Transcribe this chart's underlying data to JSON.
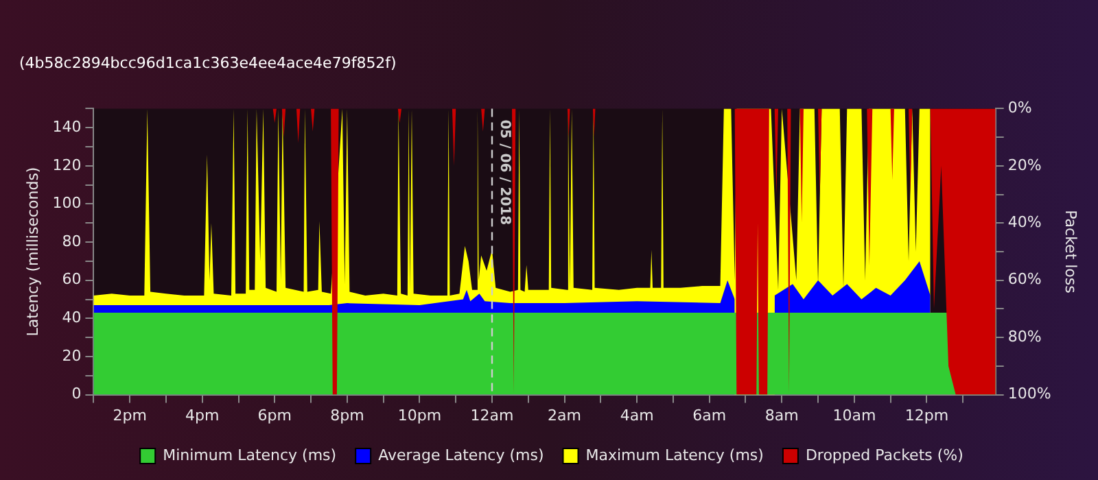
{
  "chart_data": {
    "type": "area",
    "subtitle": "(4b58c2894bcc96d1ca1c363e4ee4ace4e79f852f)",
    "ylabel": "Latency (milliseconds)",
    "y2label": "Packet loss",
    "xlim": [
      "2018-06-04T13:00",
      "2018-06-05T13:54"
    ],
    "xticks": [
      {
        "value": "2018-06-04T13:00",
        "label": null
      },
      {
        "value": "2018-06-04T14:00",
        "label": "2pm"
      },
      {
        "value": "2018-06-04T15:00",
        "label": null
      },
      {
        "value": "2018-06-04T16:00",
        "label": "4pm"
      },
      {
        "value": "2018-06-04T17:00",
        "label": null
      },
      {
        "value": "2018-06-04T18:00",
        "label": "6pm"
      },
      {
        "value": "2018-06-04T19:00",
        "label": null
      },
      {
        "value": "2018-06-04T20:00",
        "label": "8pm"
      },
      {
        "value": "2018-06-04T21:00",
        "label": null
      },
      {
        "value": "2018-06-04T22:00",
        "label": "10pm"
      },
      {
        "value": "2018-06-04T23:00",
        "label": null
      },
      {
        "value": "2018-06-05T00:00",
        "label": "12am"
      },
      {
        "value": "2018-06-05T01:00",
        "label": null
      },
      {
        "value": "2018-06-05T02:00",
        "label": "2am"
      },
      {
        "value": "2018-06-05T03:00",
        "label": null
      },
      {
        "value": "2018-06-05T04:00",
        "label": "4am"
      },
      {
        "value": "2018-06-05T05:00",
        "label": null
      },
      {
        "value": "2018-06-05T06:00",
        "label": "6am"
      },
      {
        "value": "2018-06-05T07:00",
        "label": null
      },
      {
        "value": "2018-06-05T08:00",
        "label": "8am"
      },
      {
        "value": "2018-06-05T09:00",
        "label": null
      },
      {
        "value": "2018-06-05T10:00",
        "label": "10am"
      },
      {
        "value": "2018-06-05T11:00",
        "label": null
      },
      {
        "value": "2018-06-05T12:00",
        "label": "12pm"
      },
      {
        "value": "2018-06-05T13:00",
        "label": null
      }
    ],
    "ylim": [
      0,
      150
    ],
    "yticks": [
      0,
      {
        "value": 10,
        "label": null
      },
      20,
      {
        "value": 30,
        "label": null
      },
      40,
      {
        "value": 50,
        "label": null
      },
      60,
      {
        "value": 70,
        "label": null
      },
      80,
      {
        "value": 90,
        "label": null
      },
      100,
      {
        "value": 110,
        "label": null
      },
      120,
      {
        "value": 130,
        "label": null
      },
      140,
      {
        "value": 150,
        "label": null
      }
    ],
    "y2lim": [
      100,
      0
    ],
    "y2ticks": [
      {
        "value": 0,
        "label": "0%"
      },
      {
        "value": 10,
        "label": null
      },
      {
        "value": 20,
        "label": "20%"
      },
      {
        "value": 30,
        "label": null
      },
      {
        "value": 40,
        "label": "40%"
      },
      {
        "value": 50,
        "label": null
      },
      {
        "value": 60,
        "label": "60%"
      },
      {
        "value": 70,
        "label": null
      },
      {
        "value": 80,
        "label": "80%"
      },
      {
        "value": 90,
        "label": null
      },
      {
        "value": 100,
        "label": "100%"
      }
    ],
    "grid": false,
    "legend": "bottom",
    "ref_lines": [
      {
        "axis": "x",
        "value": "2018-06-05T00:00",
        "label": "05 / 06 / 2018",
        "line_style": "dashed",
        "color": "#cccccc"
      }
    ],
    "series": [
      {
        "name": "Minimum Latency (ms)",
        "color": "#33cc33",
        "x": [
          "2018-06-04T13:00",
          "2018-06-04T16:00",
          "2018-06-04T20:00",
          "2018-06-05T00:00",
          "2018-06-05T04:00",
          "2018-06-05T06:24",
          "2018-06-05T10:00",
          "2018-06-05T13:54"
        ],
        "values": [
          43,
          43,
          43,
          43,
          43,
          43,
          43,
          43
        ]
      },
      {
        "name": "Average Latency (ms)",
        "color": "#0000ff",
        "x": [
          "2018-06-04T13:00",
          "2018-06-04T16:00",
          "2018-06-04T19:30",
          "2018-06-04T20:00",
          "2018-06-04T22:00",
          "2018-06-04T23:12",
          "2018-06-04T23:18",
          "2018-06-04T23:24",
          "2018-06-04T23:39",
          "2018-06-04T23:48",
          "2018-06-05T00:30",
          "2018-06-05T02:00",
          "2018-06-05T04:00",
          "2018-06-05T06:18",
          "2018-06-05T06:30",
          "2018-06-05T06:42",
          "2018-06-05T07:00",
          "2018-06-05T07:30",
          "2018-06-05T07:48",
          "2018-06-05T08:18",
          "2018-06-05T08:36",
          "2018-06-05T09:00",
          "2018-06-05T09:24",
          "2018-06-05T09:48",
          "2018-06-05T10:12",
          "2018-06-05T10:36",
          "2018-06-05T11:00",
          "2018-06-05T11:24",
          "2018-06-05T11:48",
          "2018-06-05T12:06"
        ],
        "values": [
          47,
          47,
          47,
          48,
          47,
          50,
          55,
          49,
          53,
          49,
          48,
          48,
          49,
          48,
          60,
          50,
          null,
          null,
          52,
          58,
          50,
          60,
          52,
          58,
          50,
          56,
          52,
          60,
          70,
          52
        ]
      },
      {
        "name": "Maximum Latency (ms)",
        "color": "#ffff00",
        "x": [
          "2018-06-04T13:00",
          "2018-06-04T13:30",
          "2018-06-04T14:00",
          "2018-06-04T14:24",
          "2018-06-04T14:29",
          "2018-06-04T14:34",
          "2018-06-04T15:00",
          "2018-06-04T15:30",
          "2018-06-04T16:03",
          "2018-06-04T16:08",
          "2018-06-04T16:12",
          "2018-06-04T16:15",
          "2018-06-04T16:19",
          "2018-06-04T16:48",
          "2018-06-04T16:52",
          "2018-06-04T16:55",
          "2018-06-04T17:12",
          "2018-06-04T17:15",
          "2018-06-04T17:18",
          "2018-06-04T17:27",
          "2018-06-04T17:30",
          "2018-06-04T17:36",
          "2018-06-04T17:41",
          "2018-06-04T17:45",
          "2018-06-04T18:03",
          "2018-06-04T18:06",
          "2018-06-04T18:10",
          "2018-06-04T18:13",
          "2018-06-04T18:18",
          "2018-06-04T18:48",
          "2018-06-04T18:50",
          "2018-06-04T18:54",
          "2018-06-04T19:12",
          "2018-06-04T19:14",
          "2018-06-04T19:18",
          "2018-06-04T19:33",
          "2018-06-04T19:52",
          "2018-06-04T19:56",
          "2018-06-04T20:00",
          "2018-06-04T20:04",
          "2018-06-04T20:30",
          "2018-06-04T21:00",
          "2018-06-04T21:23",
          "2018-06-04T21:25",
          "2018-06-04T21:29",
          "2018-06-04T21:40",
          "2018-06-04T21:42",
          "2018-06-04T21:44",
          "2018-06-04T21:47",
          "2018-06-04T21:50",
          "2018-06-04T22:18",
          "2018-06-04T22:46",
          "2018-06-04T22:48",
          "2018-06-04T22:50",
          "2018-06-04T23:06",
          "2018-06-04T23:15",
          "2018-06-04T23:21",
          "2018-06-04T23:27",
          "2018-06-04T23:34",
          "2018-06-04T23:36",
          "2018-06-04T23:38",
          "2018-06-04T23:42",
          "2018-06-04T23:51",
          "2018-06-05T00:00",
          "2018-06-05T00:06",
          "2018-06-05T00:30",
          "2018-06-05T00:43",
          "2018-06-05T00:45",
          "2018-06-05T00:47",
          "2018-06-05T00:54",
          "2018-06-05T00:57",
          "2018-06-05T01:00",
          "2018-06-05T01:34",
          "2018-06-05T01:36",
          "2018-06-05T01:38",
          "2018-06-05T02:04",
          "2018-06-05T02:06",
          "2018-06-05T02:09",
          "2018-06-05T02:12",
          "2018-06-05T02:15",
          "2018-06-05T02:46",
          "2018-06-05T02:48",
          "2018-06-05T02:50",
          "2018-06-05T03:30",
          "2018-06-05T04:00",
          "2018-06-05T04:22",
          "2018-06-05T04:24",
          "2018-06-05T04:26",
          "2018-06-05T04:40",
          "2018-06-05T04:42",
          "2018-06-05T04:44",
          "2018-06-05T05:12",
          "2018-06-05T05:48",
          "2018-06-05T06:18",
          "2018-06-05T06:24",
          "2018-06-05T06:36",
          "2018-06-05T06:42",
          "2018-06-05T06:45",
          "2018-06-05T07:42",
          "2018-06-05T07:54",
          "2018-06-05T08:00",
          "2018-06-05T08:24",
          "2018-06-05T08:30",
          "2018-06-05T08:54",
          "2018-06-05T09:00",
          "2018-06-05T09:06",
          "2018-06-05T09:36",
          "2018-06-05T09:42",
          "2018-06-05T09:48",
          "2018-06-05T10:12",
          "2018-06-05T10:18",
          "2018-06-05T10:24",
          "2018-06-05T11:24",
          "2018-06-05T11:30",
          "2018-06-05T11:36",
          "2018-06-05T11:42",
          "2018-06-05T11:48",
          "2018-06-05T12:06"
        ],
        "values": [
          52,
          53,
          52,
          52,
          150,
          54,
          53,
          52,
          52,
          126,
          60,
          90,
          53,
          52,
          150,
          53,
          53,
          150,
          55,
          55,
          150,
          70,
          150,
          56,
          54,
          150,
          60,
          150,
          56,
          54,
          150,
          54,
          55,
          91,
          54,
          53,
          150,
          58,
          150,
          54,
          52,
          53,
          52,
          150,
          53,
          52,
          150,
          55,
          150,
          53,
          52,
          52,
          150,
          52,
          53,
          78,
          70,
          55,
          55,
          150,
          60,
          73,
          65,
          76,
          56,
          54,
          55,
          150,
          55,
          54,
          68,
          55,
          55,
          150,
          56,
          55,
          150,
          56,
          150,
          56,
          55,
          150,
          56,
          55,
          56,
          56,
          76,
          56,
          56,
          150,
          56,
          56,
          57,
          57,
          150,
          150,
          60,
          150,
          150,
          55,
          150,
          60,
          150,
          150,
          58,
          150,
          150,
          56,
          150,
          150,
          60,
          150,
          150,
          70,
          150,
          75,
          150,
          150
        ]
      },
      {
        "name": "Dropped Packets (%)",
        "color": "#cc0000",
        "axis": "y2",
        "x": [
          "2018-06-04T13:00",
          "2018-06-04T17:57",
          "2018-06-04T18:00",
          "2018-06-04T18:03",
          "2018-06-04T18:12",
          "2018-06-04T18:15",
          "2018-06-04T18:18",
          "2018-06-04T18:36",
          "2018-06-04T18:39",
          "2018-06-04T18:42",
          "2018-06-04T19:00",
          "2018-06-04T19:03",
          "2018-06-04T19:06",
          "2018-06-04T19:33",
          "2018-06-04T19:36",
          "2018-06-04T19:43",
          "2018-06-04T19:46",
          "2018-06-04T21:24",
          "2018-06-04T21:27",
          "2018-06-04T21:30",
          "2018-06-04T22:54",
          "2018-06-04T22:57",
          "2018-06-04T23:00",
          "2018-06-04T23:42",
          "2018-06-04T23:45",
          "2018-06-04T23:48",
          "2018-06-05T00:33",
          "2018-06-05T00:36",
          "2018-06-05T00:39",
          "2018-06-05T02:05",
          "2018-06-05T02:07",
          "2018-06-05T02:09",
          "2018-06-05T02:47",
          "2018-06-05T02:49",
          "2018-06-05T02:51",
          "2018-06-05T06:42",
          "2018-06-05T06:45",
          "2018-06-05T07:18",
          "2018-06-05T07:20",
          "2018-06-05T07:22",
          "2018-06-05T07:36",
          "2018-06-05T07:39",
          "2018-06-05T07:48",
          "2018-06-05T07:51",
          "2018-06-05T07:54",
          "2018-06-05T08:09",
          "2018-06-05T08:12",
          "2018-06-05T08:15",
          "2018-06-05T08:30",
          "2018-06-05T08:33",
          "2018-06-05T08:36",
          "2018-06-05T09:00",
          "2018-06-05T09:03",
          "2018-06-05T09:06",
          "2018-06-05T10:21",
          "2018-06-05T10:25",
          "2018-06-05T10:30",
          "2018-06-05T11:00",
          "2018-06-05T11:03",
          "2018-06-05T11:06",
          "2018-06-05T11:30",
          "2018-06-05T11:33",
          "2018-06-05T11:36",
          "2018-06-05T12:06",
          "2018-06-05T12:12",
          "2018-06-05T12:24",
          "2018-06-05T12:36",
          "2018-06-05T12:48",
          "2018-06-05T13:54"
        ],
        "values": [
          0,
          0,
          5,
          0,
          0,
          10,
          0,
          0,
          12,
          0,
          0,
          8,
          0,
          0,
          100,
          100,
          0,
          0,
          5,
          0,
          0,
          20,
          0,
          0,
          8,
          0,
          0,
          100,
          0,
          0,
          10,
          0,
          0,
          10,
          0,
          0,
          100,
          100,
          40,
          100,
          100,
          0,
          0,
          30,
          0,
          0,
          100,
          0,
          0,
          40,
          0,
          0,
          30,
          0,
          0,
          55,
          0,
          0,
          25,
          0,
          0,
          30,
          0,
          0,
          70,
          20,
          90,
          100,
          100
        ]
      }
    ]
  }
}
